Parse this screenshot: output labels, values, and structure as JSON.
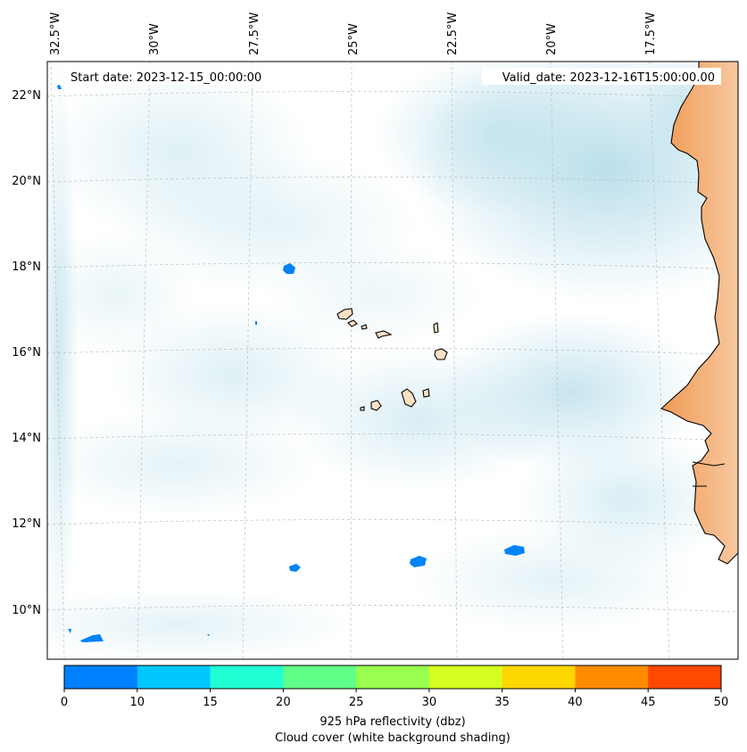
{
  "header": {
    "start_date": "Start date: 2023-12-15_00:00:00",
    "valid_date": "Valid_date: 2023-12-16T15:00:00.00"
  },
  "map": {
    "lon_labels": [
      "32.5°W",
      "30°W",
      "27.5°W",
      "25°W",
      "22.5°W",
      "20°W",
      "17.5°W"
    ],
    "lat_labels": [
      "22°N",
      "20°N",
      "18°N",
      "16°N",
      "14°N",
      "12°N",
      "10°N"
    ],
    "layers": [
      "925 hPa reflectivity",
      "cloud cover shading",
      "coastlines",
      "gridlines"
    ],
    "colors": {
      "ocean_cloud": "#cde8f0",
      "land_africa": "#f3a766",
      "land_islands": "#fbe0c4",
      "reflectivity_cells": "#0083f4"
    }
  },
  "colorbar": {
    "ticks": [
      "0",
      "10",
      "15",
      "20",
      "25",
      "30",
      "35",
      "40",
      "45",
      "50"
    ],
    "colors": [
      "#0080ff",
      "#00c8ff",
      "#20ffd4",
      "#60ff88",
      "#98ff50",
      "#d4ff20",
      "#ffd700",
      "#ff8c00",
      "#ff4800"
    ],
    "label_line1": "925 hPa reflectivity (dbz)",
    "label_line2": "Cloud cover (white background shading)"
  }
}
